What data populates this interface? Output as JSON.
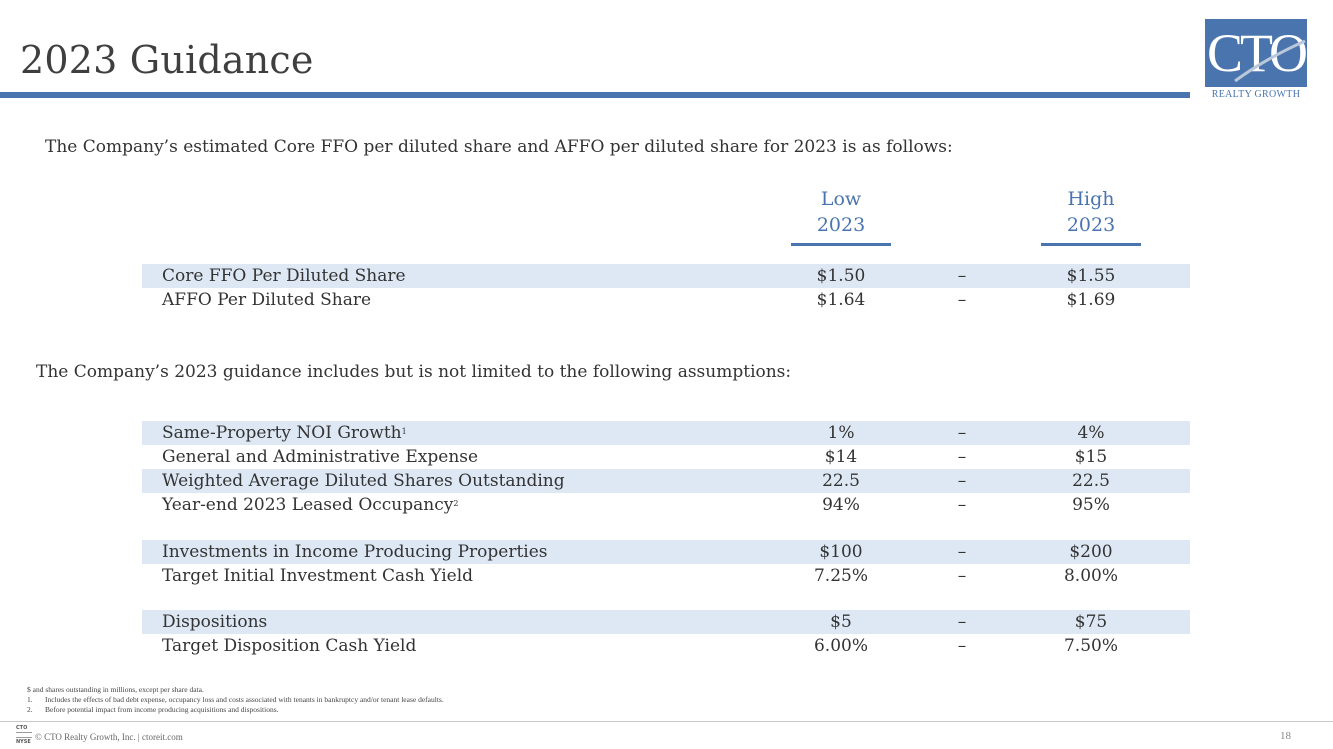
{
  "header": {
    "title": "2023 Guidance",
    "logo_text": "CTO",
    "logo_subtext": "REALTY GROWTH",
    "accent_color": "#4a74ad",
    "row_shade_color": "#dde8f4"
  },
  "intro1": "The Company’s estimated Core FFO per diluted share and AFFO per diluted share for 2023 is as follows:",
  "columns": {
    "low": {
      "line1": "Low",
      "line2": "2023"
    },
    "high": {
      "line1": "High",
      "line2": "2023"
    }
  },
  "ffo_rows": [
    {
      "label": "Core FFO Per Diluted Share",
      "low": "$1.50",
      "dash": "–",
      "high": "$1.55"
    },
    {
      "label": "AFFO Per Diluted Share",
      "low": "$1.64",
      "dash": "–",
      "high": "$1.69"
    }
  ],
  "intro2": "The Company’s 2023 guidance includes but is not limited to the following assumptions:",
  "assumption_rows": [
    {
      "label": "Same-Property NOI Growth",
      "sup": "1",
      "low": "1%",
      "dash": "–",
      "high": "4%"
    },
    {
      "label": "General and Administrative Expense",
      "low": "$14",
      "dash": "–",
      "high": "$15"
    },
    {
      "label": "Weighted Average Diluted Shares Outstanding",
      "low": "22.5",
      "dash": "–",
      "high": "22.5"
    },
    {
      "label": "Year-end 2023 Leased Occupancy",
      "sup": "2",
      "low": "94%",
      "dash": "–",
      "high": "95%"
    },
    {
      "label": "Investments in Income Producing Properties",
      "low": "$100",
      "dash": "–",
      "high": "$200"
    },
    {
      "label": "Target Initial Investment Cash Yield",
      "low": "7.25%",
      "dash": "–",
      "high": "8.00%"
    },
    {
      "label": "Dispositions",
      "low": "$5",
      "dash": "–",
      "high": "$75"
    },
    {
      "label": "Target Disposition Cash Yield",
      "low": "6.00%",
      "dash": "–",
      "high": "7.50%"
    }
  ],
  "notes": {
    "units": "$ and shares outstanding in millions, except per share data.",
    "items": [
      {
        "num": "1.",
        "text": "Includes the effects of bad debt expense, occupancy loss and costs associated with tenants in bankruptcy and/or tenant lease defaults."
      },
      {
        "num": "2.",
        "text": "Before potential impact from income producing acquisitions and dispositions."
      }
    ]
  },
  "footer": {
    "mini_logo_line1": "CTO",
    "mini_logo_line2": "NYSE",
    "text": "© CTO Realty Growth, Inc. | ctoreit.com",
    "page_number": "18"
  }
}
